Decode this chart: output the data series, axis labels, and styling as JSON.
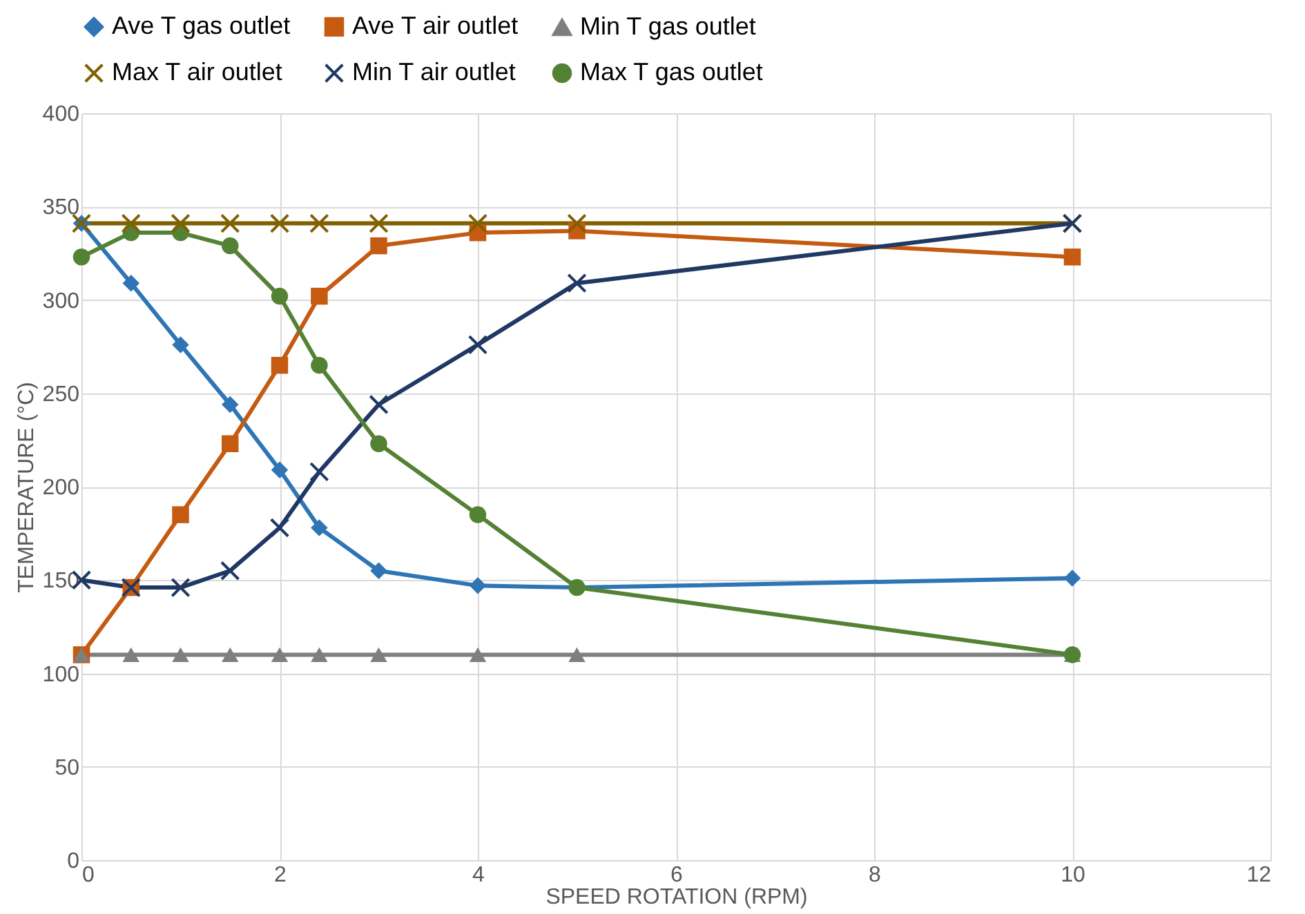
{
  "chart_data": {
    "type": "line",
    "xlabel": "SPEED ROTATION (RPM)",
    "ylabel": "TEMPERATURE (°C)",
    "x": [
      0,
      0.5,
      1,
      1.5,
      2,
      2.4,
      3,
      4,
      5,
      10
    ],
    "series": [
      {
        "name": "Ave T gas outlet",
        "color": "#2e75b6",
        "marker": "diamond",
        "values": [
          341,
          309,
          276,
          244,
          209,
          178,
          155,
          147,
          146,
          151
        ]
      },
      {
        "name": "Ave T air outlet",
        "color": "#c55a11",
        "marker": "square",
        "values": [
          110,
          146,
          185,
          223,
          265,
          302,
          329,
          336,
          337,
          323
        ]
      },
      {
        "name": "Min T gas outlet",
        "color": "#7f7f7f",
        "marker": "triangle",
        "values": [
          110,
          110,
          110,
          110,
          110,
          110,
          110,
          110,
          110,
          110
        ]
      },
      {
        "name": "Max T air outlet",
        "color": "#806000",
        "marker": "cross",
        "values": [
          341,
          341,
          341,
          341,
          341,
          341,
          341,
          341,
          341,
          341
        ]
      },
      {
        "name": "Min T air outlet",
        "color": "#203864",
        "marker": "cross",
        "values": [
          150,
          146,
          146,
          155,
          178,
          208,
          244,
          276,
          309,
          341
        ]
      },
      {
        "name": "Max T gas outlet",
        "color": "#548235",
        "marker": "circle",
        "values": [
          323,
          336,
          336,
          329,
          302,
          265,
          223,
          185,
          146,
          110
        ]
      }
    ],
    "xlim": [
      0,
      12
    ],
    "xticks": [
      0,
      2,
      4,
      6,
      8,
      10,
      12
    ],
    "ylim": [
      0,
      400
    ],
    "yticks": [
      0,
      50,
      100,
      150,
      200,
      250,
      300,
      350,
      400
    ],
    "grid": true,
    "legend": "top",
    "line_style": "solid"
  }
}
